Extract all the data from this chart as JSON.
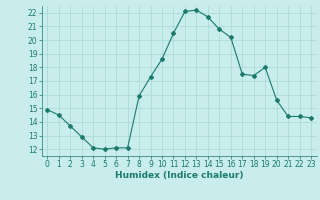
{
  "x": [
    0,
    1,
    2,
    3,
    4,
    5,
    6,
    7,
    8,
    9,
    10,
    11,
    12,
    13,
    14,
    15,
    16,
    17,
    18,
    19,
    20,
    21,
    22,
    23
  ],
  "y": [
    14.9,
    14.5,
    13.7,
    12.9,
    12.1,
    12.0,
    12.1,
    12.1,
    15.9,
    17.3,
    18.6,
    20.5,
    22.1,
    22.2,
    21.7,
    20.8,
    20.2,
    17.5,
    17.4,
    18.0,
    15.6,
    14.4,
    14.4,
    14.3
  ],
  "line_color": "#1a7a6e",
  "marker": "D",
  "marker_size": 2.0,
  "bg_color": "#c8edec",
  "grid_color": "#a8d8d4",
  "xlabel": "Humidex (Indice chaleur)",
  "xlabel_fontsize": 6.5,
  "tick_fontsize": 5.5,
  "ylim": [
    11.5,
    22.5
  ],
  "xlim": [
    -0.5,
    23.5
  ],
  "yticks": [
    12,
    13,
    14,
    15,
    16,
    17,
    18,
    19,
    20,
    21,
    22
  ],
  "xticks": [
    0,
    1,
    2,
    3,
    4,
    5,
    6,
    7,
    8,
    9,
    10,
    11,
    12,
    13,
    14,
    15,
    16,
    17,
    18,
    19,
    20,
    21,
    22,
    23
  ]
}
